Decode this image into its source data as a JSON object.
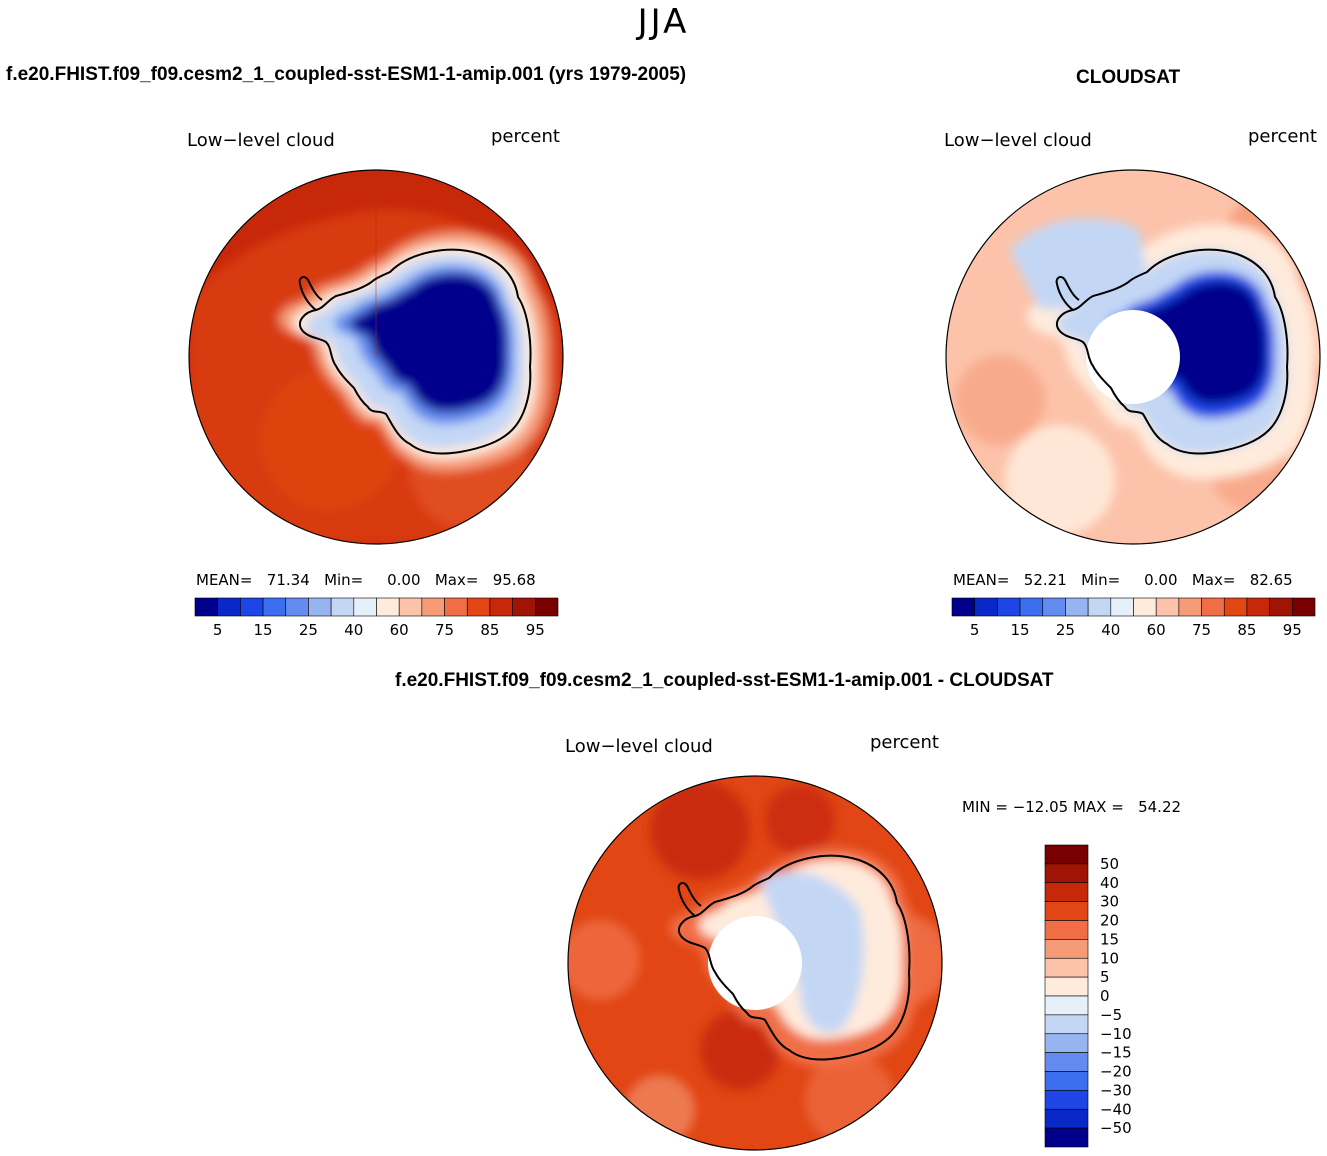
{
  "figure_title": "JJA",
  "palettes": {
    "abs": [
      "#00008c",
      "#0a28c8",
      "#1e46e6",
      "#3c6ef0",
      "#648cf0",
      "#96b4f0",
      "#c3d7f5",
      "#e6f0fa",
      "#ffebdc",
      "#fcc3aa",
      "#f59b78",
      "#f06e46",
      "#e14614",
      "#c8280a",
      "#a01405",
      "#780000"
    ],
    "diff": [
      "#00008c",
      "#0a28c8",
      "#1e46e6",
      "#3c6ef0",
      "#648cf0",
      "#96b4f0",
      "#c3d7f5",
      "#e6f0fa",
      "#ffebdc",
      "#fcc3aa",
      "#f59b78",
      "#f06e46",
      "#e14614",
      "#c8280a",
      "#a01405",
      "#780000"
    ]
  },
  "panels": {
    "model": {
      "title": "f.e20.FHIST.f09_f09.cesm2_1_coupled-sst-ESM1-1-amip.001 (yrs 1979-2005)",
      "variable": "Low−level cloud",
      "units": "percent",
      "mean_label": "MEAN=",
      "mean": "71.34",
      "min_label": "Min=",
      "min": "0.00",
      "max_label": "Max=",
      "max": "95.68"
    },
    "obs": {
      "title": "CLOUDSAT",
      "variable": "Low−level cloud",
      "units": "percent",
      "mean_label": "MEAN=",
      "mean": "52.21",
      "min_label": "Min=",
      "min": "0.00",
      "max_label": "Max=",
      "max": "82.65"
    },
    "diff": {
      "title": "f.e20.FHIST.f09_f09.cesm2_1_coupled-sst-ESM1-1-amip.001 - CLOUDSAT",
      "variable": "Low−level cloud",
      "units": "percent",
      "minmax_text": "MIN = −12.05 MAX =   54.22"
    }
  },
  "chart_data": [
    {
      "type": "heatmap",
      "projection": "south-polar-stereographic",
      "title": "f.e20.FHIST.f09_f09.cesm2_1_coupled-sst-ESM1-1-amip.001 (yrs 1979-2005)",
      "variable": "Low-level cloud",
      "units": "percent",
      "mean": 71.34,
      "min": 0.0,
      "max": 95.68,
      "colorbar_ticks": [
        "5",
        "15",
        "25",
        "40",
        "60",
        "75",
        "85",
        "95"
      ],
      "field_description_levels": {
        "antarctic_plateau": 2,
        "coastal_ring": 55,
        "ocean_near": 88,
        "ocean_far": 85
      }
    },
    {
      "type": "heatmap",
      "projection": "south-polar-stereographic",
      "title": "CLOUDSAT",
      "variable": "Low-level cloud",
      "units": "percent",
      "mean": 52.21,
      "min": 0.0,
      "max": 82.65,
      "colorbar_ticks": [
        "5",
        "15",
        "25",
        "40",
        "60",
        "75",
        "85",
        "95"
      ]
    },
    {
      "type": "heatmap",
      "projection": "south-polar-stereographic",
      "title": "f.e20.FHIST.f09_f09.cesm2_1_coupled-sst-ESM1-1-amip.001 - CLOUDSAT",
      "variable": "Low-level cloud",
      "units": "percent",
      "min": -12.05,
      "max": 54.22,
      "colorbar_ticks": [
        "50",
        "40",
        "30",
        "20",
        "15",
        "10",
        "5",
        "0",
        "−5",
        "−10",
        "−15",
        "−20",
        "−30",
        "−40",
        "−50"
      ]
    }
  ]
}
